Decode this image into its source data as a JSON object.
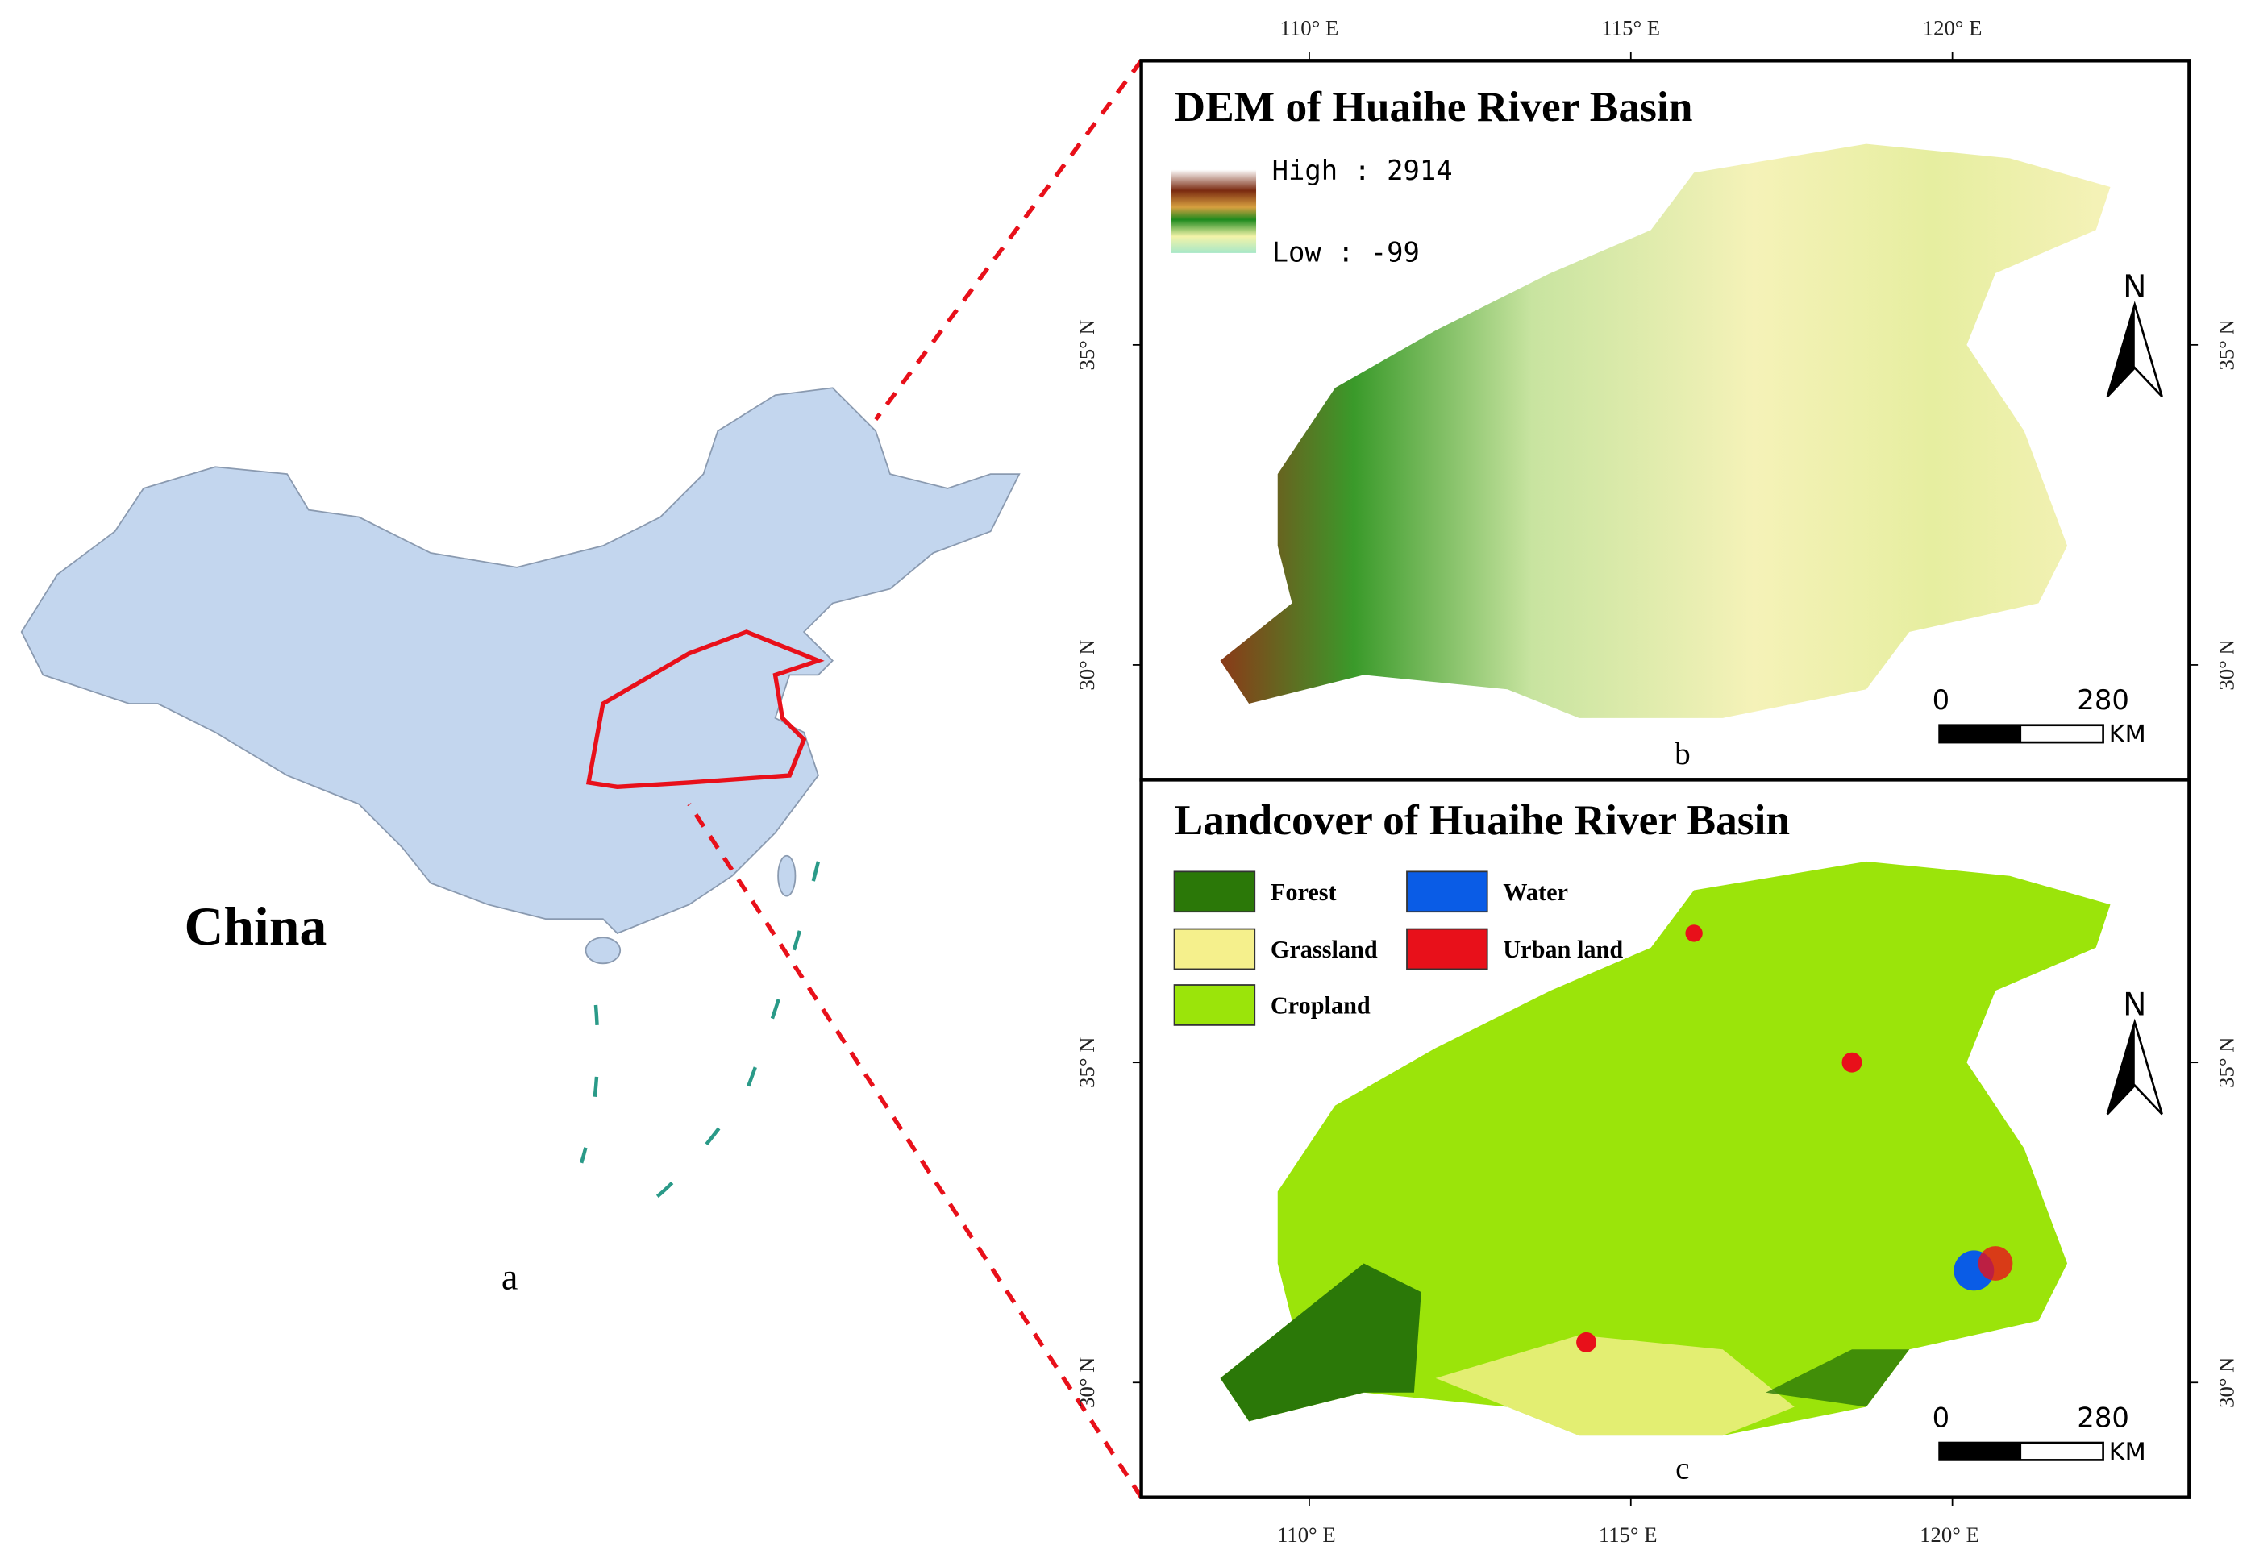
{
  "panel_a": {
    "title": "China",
    "label": "a"
  },
  "panel_b": {
    "title": "DEM of Huaihe River Basin",
    "legend": {
      "high": "High : 2914",
      "low": "Low : -99"
    },
    "north": "N",
    "scale": {
      "start": "0",
      "end": "280",
      "unit": "KM"
    },
    "label": "b"
  },
  "panel_c": {
    "title": "Landcover of Huaihe River Basin",
    "legend": [
      {
        "label": "Forest",
        "color": "#2b7808"
      },
      {
        "label": "Grassland",
        "color": "#f5f08c"
      },
      {
        "label": "Cropland",
        "color": "#9be40a"
      },
      {
        "label": "Water",
        "color": "#0a5ce6"
      },
      {
        "label": "Urban land",
        "color": "#e8101a"
      }
    ],
    "north": "N",
    "scale": {
      "start": "0",
      "end": "280",
      "unit": "KM"
    },
    "label": "c"
  },
  "graticule": {
    "longitudes": [
      "110° E",
      "115° E",
      "120° E"
    ],
    "latitudes": [
      "35° N",
      "30° N"
    ]
  }
}
